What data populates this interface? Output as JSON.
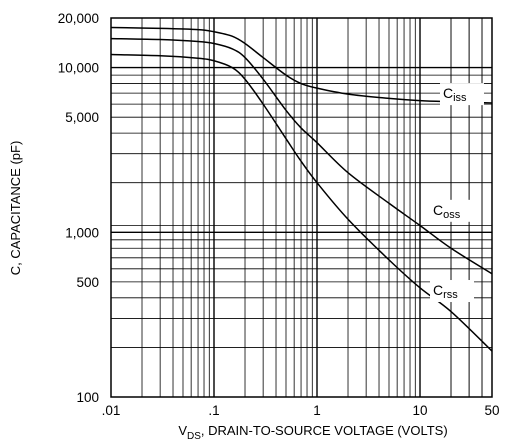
{
  "chart_data": {
    "type": "line",
    "title": "",
    "xlabel_main": "V",
    "xlabel_sub": "DS",
    "xlabel_rest": ", DRAIN-TO-SOURCE VOLTAGE (VOLTS)",
    "ylabel": "C, CAPACITANCE (pF)",
    "xscale": "log",
    "yscale": "log",
    "xlim": [
      0.01,
      50
    ],
    "ylim": [
      100,
      20000
    ],
    "grid": true,
    "x_ticks": [
      {
        "value": 0.01,
        "label": ".01"
      },
      {
        "value": 0.1,
        "label": ".1"
      },
      {
        "value": 1,
        "label": "1"
      },
      {
        "value": 10,
        "label": "10"
      },
      {
        "value": 50,
        "label": "50"
      }
    ],
    "y_ticks": [
      {
        "value": 100,
        "label": "100"
      },
      {
        "value": 500,
        "label": "500"
      },
      {
        "value": 1000,
        "label": "1,000"
      },
      {
        "value": 5000,
        "label": "5,000"
      },
      {
        "value": 10000,
        "label": "10,000"
      },
      {
        "value": 20000,
        "label": "20,000"
      }
    ],
    "series": [
      {
        "name_main": "C",
        "name_sub": "iss",
        "x": [
          0.01,
          0.03,
          0.07,
          0.1,
          0.15,
          0.2,
          0.3,
          0.5,
          0.7,
          1,
          2,
          5,
          10,
          20,
          50
        ],
        "y": [
          17500,
          17300,
          17000,
          16500,
          15500,
          14000,
          11500,
          9000,
          8000,
          7500,
          6900,
          6500,
          6300,
          6200,
          6100
        ],
        "label_at": [
          25,
          6900
        ]
      },
      {
        "name_main": "C",
        "name_sub": "oss",
        "x": [
          0.01,
          0.03,
          0.07,
          0.1,
          0.15,
          0.2,
          0.3,
          0.5,
          0.7,
          1,
          2,
          5,
          10,
          20,
          50
        ],
        "y": [
          15000,
          14800,
          14400,
          14000,
          13000,
          11500,
          8500,
          5500,
          4300,
          3500,
          2300,
          1500,
          1100,
          800,
          560
        ],
        "label_at": [
          20,
          1350
        ]
      },
      {
        "name_main": "C",
        "name_sub": "rss",
        "x": [
          0.01,
          0.03,
          0.07,
          0.1,
          0.15,
          0.2,
          0.3,
          0.5,
          0.7,
          1,
          2,
          5,
          10,
          20,
          50
        ],
        "y": [
          12000,
          11800,
          11400,
          11000,
          10000,
          8500,
          6000,
          3700,
          2700,
          2000,
          1200,
          680,
          460,
          330,
          190
        ],
        "label_at": [
          20,
          440
        ]
      }
    ]
  }
}
